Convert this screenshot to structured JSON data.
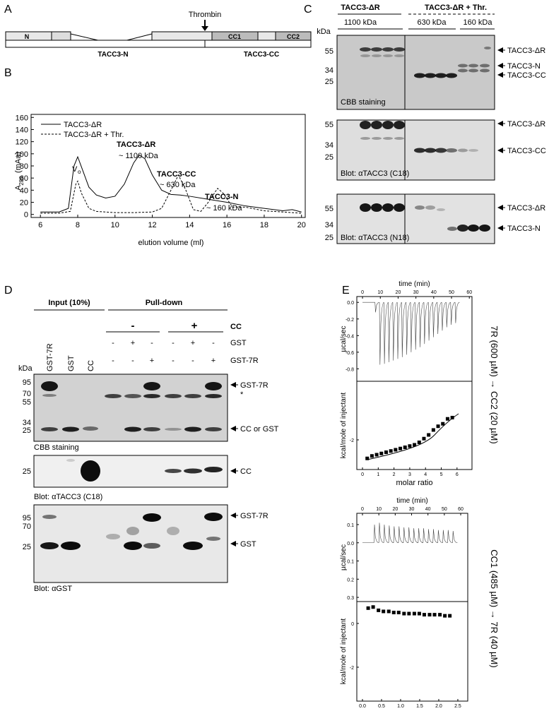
{
  "panel_labels": [
    "A",
    "B",
    "C",
    "D",
    "E"
  ],
  "panel_a": {
    "thrombin": "Thrombin",
    "domains": [
      "N",
      "CC1",
      "CC2"
    ],
    "fragments": [
      "TACC3-N",
      "TACC3-CC"
    ]
  },
  "panel_b": {
    "type": "line",
    "y_label": "A",
    "y_label_sub": "280",
    "y_label_unit": "(mAu)",
    "x_label": "elution volume (ml)",
    "xlim": [
      5.5,
      20.2
    ],
    "xticks": [
      6,
      8,
      10,
      12,
      14,
      16,
      18,
      20
    ],
    "ylim": [
      -5,
      165
    ],
    "yticks": [
      0,
      20,
      40,
      60,
      80,
      100,
      120,
      140,
      160
    ],
    "series": [
      {
        "name": "TACC3-ΔR",
        "style": "solid",
        "x": [
          6,
          7,
          7.5,
          7.8,
          8,
          8.3,
          8.6,
          9,
          9.5,
          10,
          10.5,
          11,
          11.3,
          11.6,
          12,
          12.5,
          13,
          13.5,
          14,
          15,
          16,
          17,
          18,
          19,
          19.5,
          20
        ],
        "values": [
          4,
          4,
          10,
          80,
          95,
          70,
          45,
          32,
          27,
          30,
          50,
          85,
          98,
          92,
          65,
          40,
          33,
          32,
          30,
          25,
          20,
          14,
          10,
          6,
          8,
          4
        ]
      },
      {
        "name": "TACC3-ΔR + Thr.",
        "style": "dashed",
        "x": [
          6,
          7,
          7.6,
          7.9,
          8,
          8.2,
          8.6,
          9,
          10,
          11,
          12,
          12.5,
          13,
          13.4,
          13.8,
          14.2,
          14.6,
          15,
          15.5,
          15.8,
          16.3,
          17,
          18,
          19,
          20
        ],
        "values": [
          2,
          2,
          5,
          50,
          55,
          35,
          10,
          5,
          3,
          3,
          4,
          10,
          40,
          65,
          40,
          8,
          5,
          20,
          43,
          35,
          12,
          12,
          6,
          4,
          2
        ]
      }
    ],
    "void_label": "V",
    "void_sub": "o",
    "annotations": [
      "TACC3-ΔR",
      "~ 1100 kDa",
      "TACC3-CC",
      "~ 630 kDa",
      "TACC3-N",
      "~ 160 kDa"
    ]
  },
  "panel_c": {
    "groups": [
      "TACC3-ΔR",
      "TACC3-ΔR + Thr."
    ],
    "kda": "kDa",
    "fractions": [
      "1100 kDa",
      "630 kDa",
      "160 kDa"
    ],
    "blots": [
      {
        "markers": [
          55,
          34,
          25
        ],
        "bands": [
          "TACC3-ΔR",
          "TACC3-N",
          "TACC3-CC"
        ],
        "caption": "CBB staining"
      },
      {
        "markers": [
          55,
          34,
          25
        ],
        "bands": [
          "TACC3-ΔR",
          "TACC3-CC"
        ],
        "caption": "Blot: αTACC3 (C18)"
      },
      {
        "markers": [
          55,
          34,
          25
        ],
        "bands": [
          "TACC3-ΔR",
          "TACC3-N"
        ],
        "caption": "Blot: αTACC3 (N18)"
      }
    ]
  },
  "panel_d": {
    "groups": [
      "Input (10%)",
      "Pull-down"
    ],
    "cc_row": {
      "label": "CC",
      "values": [
        "-",
        "+"
      ]
    },
    "gst_row": {
      "label": "GST",
      "values": [
        "-",
        "+",
        "-",
        "-",
        "+",
        "-"
      ]
    },
    "gst7r_row": {
      "label": "GST-7R",
      "values": [
        "-",
        "-",
        "+",
        "-",
        "-",
        "+"
      ]
    },
    "lanes": [
      "GST-7R",
      "GST",
      "CC"
    ],
    "kda": "kDa",
    "blots": [
      {
        "markers": [
          95,
          70,
          55,
          34,
          25
        ],
        "bands": [
          "GST-7R",
          "*",
          "CC or GST"
        ],
        "caption": "CBB staining"
      },
      {
        "markers": [
          25
        ],
        "bands": [
          "CC"
        ],
        "caption": "Blot: αTACC3 (C18)"
      },
      {
        "markers": [
          95,
          70,
          25
        ],
        "bands": [
          "GST-7R",
          "GST"
        ],
        "caption": "Blot: αGST"
      }
    ]
  },
  "panel_e": {
    "experiments": [
      {
        "title": "7R (600 µM) → CC2 (20 µM)",
        "thermogram": {
          "x_label": "time (min)",
          "xlim": [
            -3.2,
            61.5
          ],
          "xticks": [
            0,
            10,
            20,
            30,
            40,
            50,
            60
          ],
          "y_label": "µcal/sec",
          "ylim": [
            -0.95,
            0.07
          ],
          "yticks": [
            {
              "value": 0,
              "label": "0.0"
            },
            -0.2,
            -0.4,
            -0.6,
            -0.8
          ],
          "times": [
            7,
            9.5,
            12,
            14.5,
            17,
            19.5,
            22,
            24.5,
            27,
            29.5,
            32,
            34.5,
            37,
            39.5,
            42,
            44.5,
            47,
            49.5,
            52
          ],
          "heights": [
            -0.12,
            -0.75,
            -0.74,
            -0.72,
            -0.7,
            -0.68,
            -0.66,
            -0.63,
            -0.6,
            -0.57,
            -0.54,
            -0.5,
            -0.46,
            -0.42,
            -0.38,
            -0.34,
            -0.3,
            -0.27,
            -0.25
          ]
        },
        "isotherm": {
          "x_label": "molar ratio",
          "xlim": [
            -0.36,
            6.95
          ],
          "xticks": [
            0,
            1,
            2,
            3,
            4,
            5,
            6
          ],
          "y_label": "kcal/mole of injectant",
          "ylim": [
            -3.2,
            0.37
          ],
          "yticks": [
            -2
          ],
          "x": [
            0.3,
            0.6,
            0.9,
            1.2,
            1.5,
            1.8,
            2.1,
            2.4,
            2.7,
            3.0,
            3.3,
            3.6,
            3.9,
            4.2,
            4.5,
            4.8,
            5.1,
            5.4,
            5.7
          ],
          "values": [
            -2.75,
            -2.65,
            -2.6,
            -2.55,
            -2.5,
            -2.45,
            -2.4,
            -2.35,
            -2.3,
            -2.25,
            -2.2,
            -2.1,
            -1.95,
            -1.8,
            -1.6,
            -1.45,
            -1.35,
            -1.15,
            -1.1
          ]
        }
      },
      {
        "title": "CC1 (485 µM) → 7R (40 µM)",
        "thermogram": {
          "x_label": "time (min)",
          "xlim": [
            -3.45,
            64.3
          ],
          "xticks": [
            0,
            10,
            20,
            30,
            40,
            50,
            60
          ],
          "y_label": "µcal/sec",
          "ylim": [
            -0.323,
            0.162
          ],
          "yticks": [
            0.1,
            {
              "value": 0,
              "label": "0.0"
            },
            {
              "value": -0.1,
              "label": "0.1"
            },
            {
              "value": -0.2,
              "label": "0.2"
            },
            {
              "value": -0.3,
              "label": "0.3"
            }
          ],
          "times": [
            7,
            10,
            13,
            16,
            19,
            22,
            25,
            28,
            31,
            34,
            37,
            40,
            43,
            46,
            49,
            52,
            55
          ],
          "heights": [
            0.1,
            0.11,
            0.1,
            0.095,
            0.09,
            0.09,
            0.085,
            0.085,
            0.08,
            0.08,
            0.08,
            0.075,
            0.075,
            0.07,
            0.07,
            0.07,
            0.065
          ]
        },
        "isotherm": {
          "x_label": "molar ratio",
          "xlim": [
            -0.148,
            2.76
          ],
          "xticks": [
            {
              "value": 0,
              "label": "0.0"
            },
            0.5,
            {
              "value": 1,
              "label": "1.0"
            },
            1.5,
            {
              "value": 2,
              "label": "2.0"
            },
            2.5
          ],
          "y_label": "kcal/mole of injectant",
          "ylim": [
            -3.55,
            1.0
          ],
          "yticks": [
            0,
            -2
          ],
          "x": [
            0.15,
            0.28,
            0.42,
            0.55,
            0.69,
            0.82,
            0.95,
            1.09,
            1.22,
            1.36,
            1.49,
            1.62,
            1.76,
            1.89,
            2.03,
            2.16,
            2.29
          ],
          "values": [
            0.7,
            0.75,
            0.6,
            0.55,
            0.55,
            0.5,
            0.5,
            0.45,
            0.45,
            0.45,
            0.45,
            0.4,
            0.4,
            0.4,
            0.4,
            0.35,
            0.35
          ]
        }
      }
    ]
  }
}
